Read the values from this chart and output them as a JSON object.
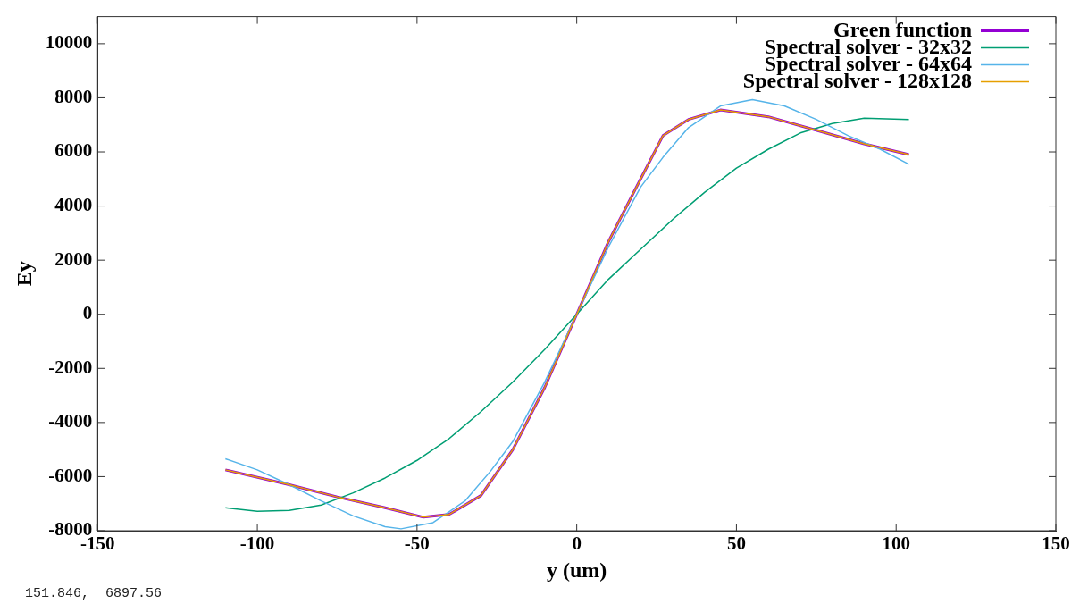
{
  "chart_data": {
    "type": "line",
    "xlabel": "y (um)",
    "ylabel": "Ey",
    "xlim": [
      -150,
      150
    ],
    "xticks": [
      -150,
      -100,
      -50,
      0,
      50,
      100,
      150
    ],
    "ylim": [
      -8000,
      11000
    ],
    "yticks": [
      -8000,
      -6000,
      -4000,
      -2000,
      0,
      2000,
      4000,
      6000,
      8000,
      10000
    ],
    "grid": false,
    "legend": "top right",
    "marker": "none",
    "line_style": "solid",
    "annotations": [
      "151.846,  6897.56"
    ],
    "series": [
      {
        "name": "Green function",
        "color": "#9400d3",
        "x": [
          -110,
          -90,
          -75,
          -60,
          -48,
          -40,
          -30,
          -20,
          -10,
          0,
          10,
          20,
          27,
          35,
          45,
          60,
          75,
          90,
          104
        ],
        "values": [
          -5750,
          -6300,
          -6750,
          -7150,
          -7500,
          -7400,
          -6700,
          -5000,
          -2700,
          0,
          2700,
          5000,
          6600,
          7200,
          7550,
          7300,
          6800,
          6300,
          5900
        ]
      },
      {
        "name": "Spectral solver - 32x32",
        "color": "#009e73",
        "x": [
          -110,
          -100,
          -90,
          -80,
          -70,
          -60,
          -50,
          -40,
          -30,
          -20,
          -10,
          0,
          10,
          20,
          30,
          40,
          50,
          60,
          70,
          80,
          90,
          104
        ],
        "values": [
          -7150,
          -7280,
          -7250,
          -7050,
          -6600,
          -6050,
          -5400,
          -4600,
          -3600,
          -2500,
          -1300,
          0,
          1300,
          2400,
          3500,
          4500,
          5400,
          6100,
          6700,
          7050,
          7250,
          7200
        ]
      },
      {
        "name": "Spectral solver - 64x64",
        "color": "#56b4e9",
        "x": [
          -110,
          -100,
          -90,
          -80,
          -70,
          -60,
          -55,
          -45,
          -35,
          -27,
          -20,
          -10,
          0,
          10,
          20,
          27,
          35,
          45,
          55,
          65,
          75,
          85,
          95,
          104
        ],
        "values": [
          -5340,
          -5750,
          -6300,
          -6900,
          -7450,
          -7850,
          -7930,
          -7700,
          -6900,
          -5800,
          -4700,
          -2500,
          0,
          2500,
          4700,
          5800,
          6900,
          7700,
          7930,
          7700,
          7200,
          6600,
          6100,
          5540
        ]
      },
      {
        "name": "Spectral solver - 128x128",
        "color": "#e69f00",
        "x": [
          -110,
          -90,
          -75,
          -60,
          -48,
          -40,
          -30,
          -20,
          -10,
          0,
          10,
          20,
          27,
          35,
          45,
          60,
          75,
          90,
          104
        ],
        "values": [
          -5750,
          -6300,
          -6750,
          -7150,
          -7500,
          -7400,
          -6700,
          -5000,
          -2700,
          0,
          2700,
          5000,
          6600,
          7200,
          7550,
          7300,
          6800,
          6300,
          5900
        ]
      }
    ]
  }
}
